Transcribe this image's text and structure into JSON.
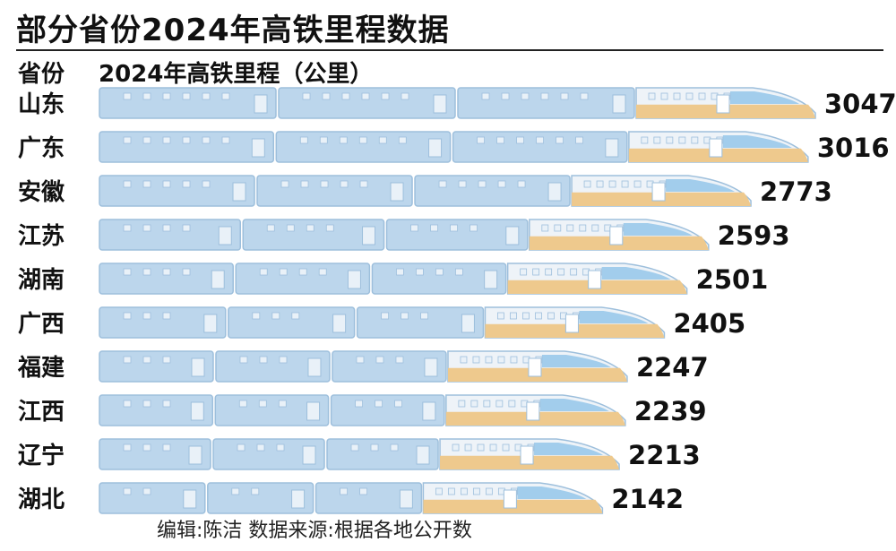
{
  "title": "部分省份2024年高铁里程数据",
  "header": {
    "category_label": "省份",
    "value_label": "2024年高铁里程（公里）"
  },
  "chart_data": {
    "type": "bar",
    "title": "部分省份2024年高铁里程数据",
    "xlabel": "省份",
    "ylabel": "2024年高铁里程（公里）",
    "categories": [
      "山东",
      "广东",
      "安徽",
      "江苏",
      "湖南",
      "广西",
      "福建",
      "江西",
      "辽宁",
      "湖北"
    ],
    "values": [
      3047,
      3016,
      2773,
      2593,
      2501,
      2405,
      2247,
      2239,
      2213,
      2142
    ],
    "orientation": "horizontal",
    "grid": false,
    "legend": "none"
  },
  "footer": "编辑:陈洁  数据来源:根据各地公开数",
  "colors": {
    "car_blue": "#bcd6ec",
    "car_stroke": "#9dbfdc",
    "window": "#e9f1f8",
    "nose_top": "#eef3f8",
    "nose_bottom": "#eec98d",
    "nose_glass": "#8fc3e8"
  }
}
